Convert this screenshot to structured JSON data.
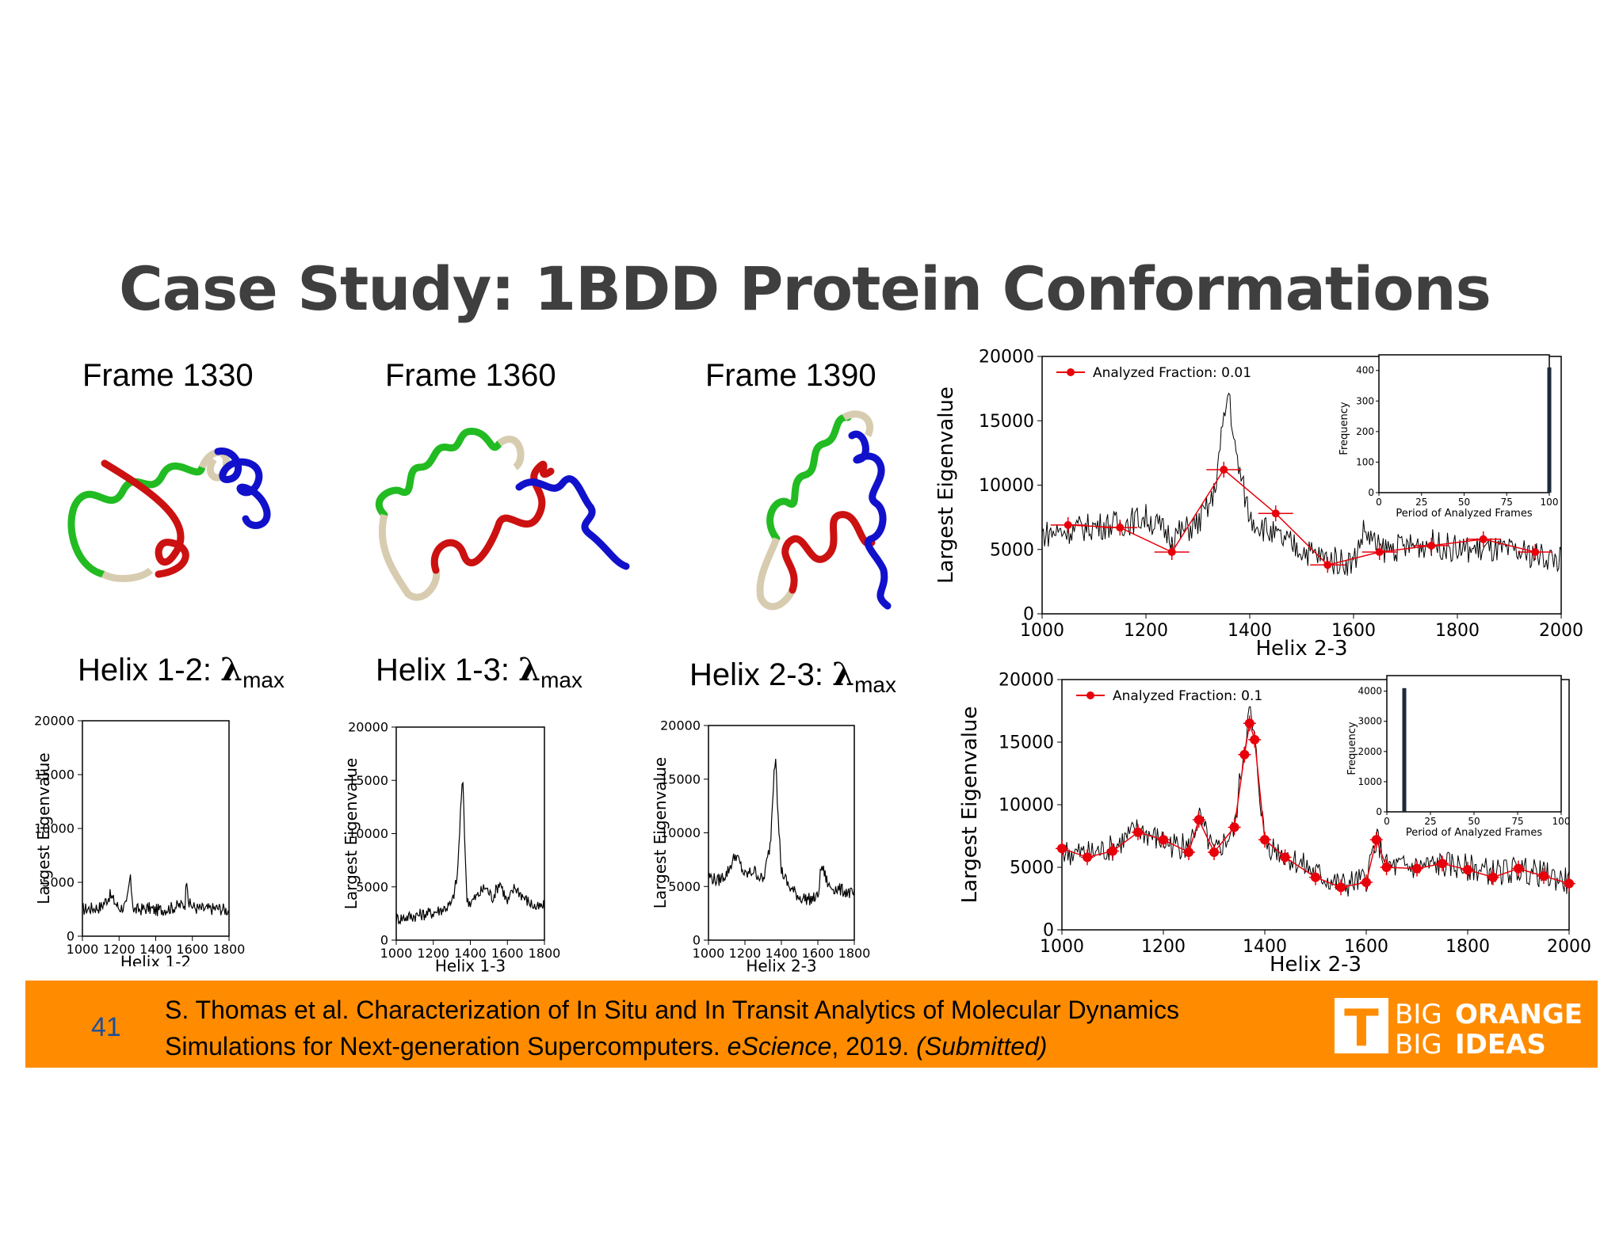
{
  "title": "Case Study: 1BDD Protein Conformations",
  "frames": [
    {
      "label": "Frame 1330"
    },
    {
      "label": "Frame 1360"
    },
    {
      "label": "Frame 1390"
    }
  ],
  "helix_labels": [
    {
      "prefix": "Helix 1-2: ",
      "lambda": "λ",
      "sub": "max"
    },
    {
      "prefix": "Helix 1-3: ",
      "lambda": "λ",
      "sub": "max"
    },
    {
      "prefix": "Helix 2-3: ",
      "lambda": "λ",
      "sub": "max"
    }
  ],
  "colors": {
    "accent": "#ff8c00",
    "series_red": "#e8000b",
    "line": "#000000",
    "helix_green": "#22bb22",
    "helix_red": "#cc1111",
    "helix_blue": "#1111cc",
    "helix_tan": "#d8ccb0"
  },
  "chart_data": [
    {
      "id": "small-helix-1-2",
      "type": "line",
      "xlabel": "Helix 1-2",
      "ylabel": "Largest Eigenvalue",
      "xlim": [
        1000,
        1800
      ],
      "ylim": [
        0,
        20000
      ],
      "xticks": [
        "1000",
        "1200",
        "1400",
        "1600",
        "1800"
      ],
      "yticks": [
        "0",
        "5000",
        "10000",
        "15000",
        "20000"
      ],
      "series": [
        {
          "x": [
            1000,
            1050,
            1100,
            1150,
            1200,
            1240,
            1260,
            1280,
            1320,
            1360,
            1400,
            1440,
            1480,
            1520,
            1560,
            1570,
            1580,
            1620,
            1680,
            1740,
            1800
          ],
          "y": [
            2500,
            2600,
            2700,
            3800,
            2600,
            2800,
            5500,
            2400,
            2500,
            2600,
            2400,
            2500,
            2600,
            2800,
            3000,
            5800,
            3000,
            2600,
            2500,
            2600,
            2400
          ]
        }
      ]
    },
    {
      "id": "small-helix-1-3",
      "type": "line",
      "xlabel": "Helix 1-3",
      "ylabel": "Largest Eigenvalue",
      "xlim": [
        1000,
        1800
      ],
      "ylim": [
        0,
        20000
      ],
      "xticks": [
        "1000",
        "1200",
        "1400",
        "1600",
        "1800"
      ],
      "yticks": [
        "0",
        "5000",
        "10000",
        "15000",
        "20000"
      ],
      "series": [
        {
          "x": [
            1000,
            1100,
            1200,
            1260,
            1300,
            1330,
            1350,
            1360,
            1380,
            1400,
            1440,
            1480,
            1520,
            1560,
            1600,
            1640,
            1700,
            1760,
            1800
          ],
          "y": [
            2000,
            2300,
            2600,
            3000,
            3400,
            6000,
            13000,
            15000,
            4000,
            3500,
            4200,
            5000,
            4000,
            5500,
            3500,
            5000,
            3800,
            3000,
            3200
          ]
        }
      ]
    },
    {
      "id": "small-helix-2-3",
      "type": "line",
      "xlabel": "Helix 2-3",
      "ylabel": "Largest Eigenvalue",
      "xlim": [
        1000,
        1800
      ],
      "ylim": [
        0,
        20000
      ],
      "xticks": [
        "1000",
        "1200",
        "1400",
        "1600",
        "1800"
      ],
      "yticks": [
        "0",
        "5000",
        "10000",
        "15000",
        "20000"
      ],
      "series": [
        {
          "x": [
            1000,
            1050,
            1100,
            1150,
            1200,
            1250,
            1300,
            1340,
            1360,
            1370,
            1380,
            1400,
            1440,
            1500,
            1560,
            1600,
            1620,
            1660,
            1700,
            1760,
            1800
          ],
          "y": [
            6000,
            5500,
            6200,
            8000,
            6000,
            6500,
            5500,
            9000,
            16000,
            17500,
            12000,
            6500,
            5000,
            4000,
            3800,
            4000,
            7000,
            5000,
            4800,
            4500,
            4200
          ]
        }
      ]
    },
    {
      "id": "large-fraction-001",
      "type": "line",
      "xlabel": "Helix 2-3",
      "ylabel": "Largest Eigenvalue",
      "xlim": [
        1000,
        2000
      ],
      "ylim": [
        0,
        20000
      ],
      "xticks": [
        "1000",
        "1200",
        "1400",
        "1600",
        "1800",
        "2000"
      ],
      "yticks": [
        "0",
        "5000",
        "10000",
        "15000",
        "20000"
      ],
      "legend": "Analyzed Fraction: 0.01",
      "legend_loc": "top-left",
      "series": [
        {
          "style": "noisy",
          "x": [
            1000,
            1050,
            1100,
            1150,
            1200,
            1250,
            1300,
            1330,
            1350,
            1360,
            1370,
            1400,
            1450,
            1500,
            1550,
            1600,
            1620,
            1650,
            1700,
            1750,
            1800,
            1850,
            1900,
            1950,
            2000
          ],
          "y": [
            6200,
            6500,
            6800,
            7000,
            7500,
            6000,
            7000,
            9000,
            15000,
            17500,
            13000,
            7500,
            6000,
            5000,
            4200,
            4000,
            6500,
            5000,
            5200,
            5500,
            5000,
            5000,
            4800,
            4600,
            4200
          ]
        },
        {
          "style": "sampled",
          "name": "Analyzed Fraction: 0.01",
          "x": [
            1050,
            1150,
            1250,
            1350,
            1450,
            1550,
            1650,
            1750,
            1850,
            1950
          ],
          "y": [
            6900,
            6700,
            4800,
            11200,
            7800,
            3800,
            4800,
            5300,
            5800,
            4800
          ]
        }
      ],
      "inset": {
        "type": "bar",
        "xlabel": "Period of Analyzed Frames",
        "ylabel": "Frequency",
        "xlim": [
          0,
          100
        ],
        "ylim": [
          0,
          420
        ],
        "xticks": [
          "0",
          "25",
          "50",
          "75",
          "100"
        ],
        "yticks": [
          "0",
          "100",
          "200",
          "300",
          "400"
        ],
        "bars": [
          {
            "x": 100,
            "y": 410
          }
        ]
      }
    },
    {
      "id": "large-fraction-01",
      "type": "line",
      "xlabel": "Helix 2-3",
      "ylabel": "Largest Eigenvalue",
      "xlim": [
        1000,
        2000
      ],
      "ylim": [
        0,
        20000
      ],
      "xticks": [
        "1000",
        "1200",
        "1400",
        "1600",
        "1800",
        "2000"
      ],
      "yticks": [
        "0",
        "5000",
        "10000",
        "15000",
        "20000"
      ],
      "legend": "Analyzed Fraction: 0.1",
      "legend_loc": "top-left",
      "series": [
        {
          "style": "noisy",
          "x": [
            1000,
            1050,
            1100,
            1150,
            1200,
            1250,
            1270,
            1300,
            1340,
            1360,
            1370,
            1380,
            1400,
            1440,
            1500,
            1550,
            1600,
            1620,
            1640,
            1700,
            1750,
            1800,
            1850,
            1900,
            1950,
            2000
          ],
          "y": [
            6200,
            6000,
            6500,
            8000,
            7000,
            6500,
            9000,
            6000,
            8000,
            15000,
            17500,
            15000,
            7000,
            6000,
            4500,
            3500,
            4000,
            7500,
            5000,
            5000,
            5200,
            5000,
            4600,
            4800,
            4400,
            3800
          ]
        },
        {
          "style": "sampled",
          "name": "Analyzed Fraction: 0.1",
          "x": [
            1000,
            1050,
            1100,
            1150,
            1200,
            1250,
            1270,
            1300,
            1340,
            1360,
            1370,
            1380,
            1400,
            1440,
            1500,
            1550,
            1600,
            1620,
            1640,
            1700,
            1750,
            1800,
            1850,
            1900,
            1950,
            2000
          ],
          "y": [
            6500,
            5800,
            6300,
            7800,
            7200,
            6200,
            8800,
            6200,
            8200,
            14000,
            16500,
            15200,
            7200,
            5800,
            4200,
            3400,
            3800,
            7200,
            5000,
            4900,
            5300,
            4800,
            4200,
            4900,
            4300,
            3700
          ]
        }
      ],
      "inset": {
        "type": "bar",
        "xlabel": "Period of Analyzed Frames",
        "ylabel": "Frequency",
        "xlim": [
          0,
          100
        ],
        "ylim": [
          0,
          4200
        ],
        "xticks": [
          "0",
          "25",
          "50",
          "75",
          "100"
        ],
        "yticks": [
          "0",
          "1000",
          "2000",
          "3000",
          "4000"
        ],
        "bars": [
          {
            "x": 10,
            "y": 4100
          }
        ]
      }
    }
  ],
  "footer": {
    "slide_number": "41",
    "line1": "S. Thomas et al.  Characterization of In Situ and In Transit Analytics of Molecular Dynamics",
    "line2_a": "Simulations for Next-generation Supercomputers. ",
    "line2_journal": "eScience",
    "line2_b": ", 2019. ",
    "line2_status": "(Submitted)"
  },
  "logo": {
    "letter": "T",
    "big1": "BIG",
    "word1": "ORANGE",
    "big2": "BIG",
    "word2": "IDEAS"
  }
}
